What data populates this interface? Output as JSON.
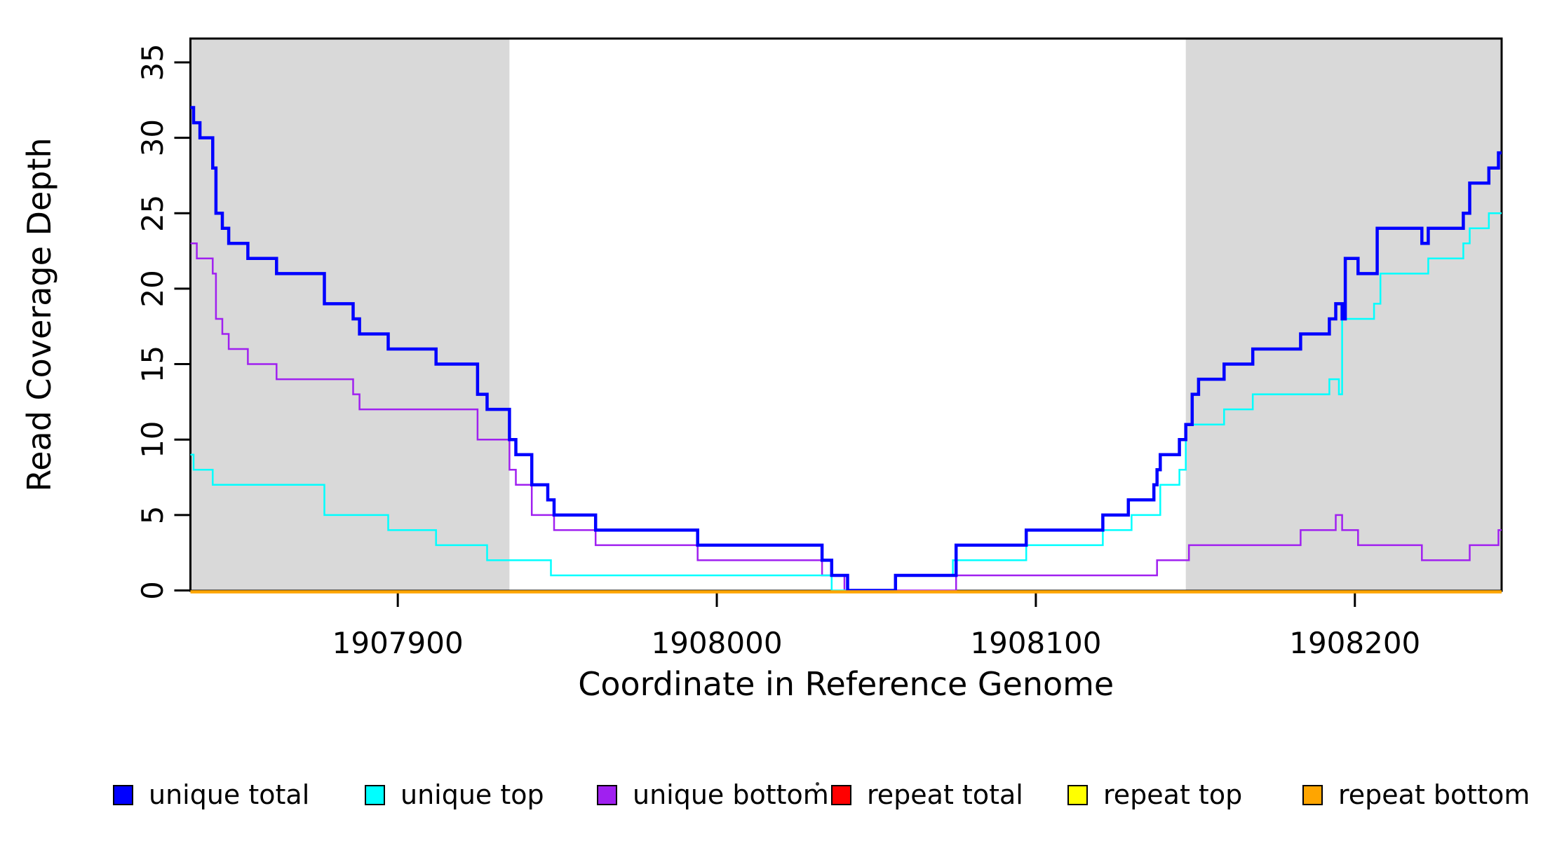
{
  "figure": {
    "background": "#ffffff",
    "plot_border_color": "#000000"
  },
  "chart_data": {
    "type": "line",
    "subtype": "step-post",
    "title": "",
    "xlabel": "Coordinate in Reference Genome",
    "ylabel": "Read Coverage Depth",
    "x_ticks": [
      1907900,
      1908000,
      1908100,
      1908200
    ],
    "y_ticks": [
      0,
      5,
      10,
      15,
      20,
      25,
      30,
      35
    ],
    "xlim": [
      1907835,
      1908246
    ],
    "ylim": [
      0,
      36.6
    ],
    "grid": false,
    "legend_position": "bottom",
    "shaded_regions": [
      {
        "name": "left-shaded-region",
        "x_start": 1907835,
        "x_end": 1907935,
        "color": "#d9d9d9"
      },
      {
        "name": "right-shaded-region",
        "x_start": 1908147,
        "x_end": 1908246,
        "color": "#d9d9d9"
      }
    ],
    "series": [
      {
        "name": "unique total",
        "color": "#0000ff",
        "line_width": 4.5,
        "steps": [
          [
            1907835,
            32
          ],
          [
            1907836,
            31
          ],
          [
            1907838,
            30
          ],
          [
            1907842,
            28
          ],
          [
            1907843,
            25
          ],
          [
            1907845,
            24
          ],
          [
            1907847,
            23
          ],
          [
            1907853,
            22
          ],
          [
            1907862,
            21
          ],
          [
            1907877,
            19
          ],
          [
            1907886,
            18
          ],
          [
            1907888,
            17
          ],
          [
            1907897,
            16
          ],
          [
            1907912,
            15
          ],
          [
            1907925,
            13
          ],
          [
            1907928,
            12
          ],
          [
            1907935,
            10
          ],
          [
            1907937,
            9
          ],
          [
            1907942,
            7
          ],
          [
            1907947,
            6
          ],
          [
            1907949,
            5
          ],
          [
            1907962,
            4
          ],
          [
            1907994,
            3
          ],
          [
            1908033,
            2
          ],
          [
            1908036,
            1
          ],
          [
            1908041,
            0
          ],
          [
            1908056,
            1
          ],
          [
            1908075,
            3
          ],
          [
            1908097,
            4
          ],
          [
            1908121,
            5
          ],
          [
            1908129,
            6
          ],
          [
            1908137,
            7
          ],
          [
            1908138,
            8
          ],
          [
            1908139,
            9
          ],
          [
            1908145,
            10
          ],
          [
            1908147,
            11
          ],
          [
            1908149,
            13
          ],
          [
            1908151,
            14
          ],
          [
            1908159,
            15
          ],
          [
            1908168,
            16
          ],
          [
            1908183,
            17
          ],
          [
            1908192,
            18
          ],
          [
            1908194,
            19
          ],
          [
            1908196,
            18
          ],
          [
            1908197,
            22
          ],
          [
            1908201,
            21
          ],
          [
            1908207,
            24
          ],
          [
            1908221,
            23
          ],
          [
            1908223,
            24
          ],
          [
            1908234,
            25
          ],
          [
            1908236,
            27
          ],
          [
            1908242,
            28
          ],
          [
            1908245,
            29
          ]
        ]
      },
      {
        "name": "unique top",
        "color": "#00ffff",
        "line_width": 2.5,
        "steps": [
          [
            1907835,
            9
          ],
          [
            1907836,
            8
          ],
          [
            1907842,
            7
          ],
          [
            1907877,
            5
          ],
          [
            1907897,
            4
          ],
          [
            1907912,
            3
          ],
          [
            1907928,
            2
          ],
          [
            1907948,
            1
          ],
          [
            1908036,
            0
          ],
          [
            1908056,
            1
          ],
          [
            1908074,
            2
          ],
          [
            1908097,
            3
          ],
          [
            1908121,
            4
          ],
          [
            1908130,
            5
          ],
          [
            1908139,
            7
          ],
          [
            1908145,
            8
          ],
          [
            1908147,
            11
          ],
          [
            1908159,
            12
          ],
          [
            1908168,
            13
          ],
          [
            1908192,
            14
          ],
          [
            1908195,
            13
          ],
          [
            1908196,
            18
          ],
          [
            1908206,
            19
          ],
          [
            1908208,
            21
          ],
          [
            1908223,
            22
          ],
          [
            1908234,
            23
          ],
          [
            1908236,
            24
          ],
          [
            1908242,
            25
          ]
        ]
      },
      {
        "name": "unique bottom",
        "color": "#a020f0",
        "line_width": 2.5,
        "steps": [
          [
            1907835,
            23
          ],
          [
            1907837,
            22
          ],
          [
            1907842,
            21
          ],
          [
            1907843,
            18
          ],
          [
            1907845,
            17
          ],
          [
            1907847,
            16
          ],
          [
            1907853,
            15
          ],
          [
            1907862,
            14
          ],
          [
            1907886,
            13
          ],
          [
            1907888,
            12
          ],
          [
            1907925,
            10
          ],
          [
            1907935,
            8
          ],
          [
            1907937,
            7
          ],
          [
            1907942,
            5
          ],
          [
            1907949,
            4
          ],
          [
            1907962,
            3
          ],
          [
            1907994,
            2
          ],
          [
            1908033,
            1
          ],
          [
            1908040,
            0
          ],
          [
            1908075,
            1
          ],
          [
            1908138,
            2
          ],
          [
            1908148,
            3
          ],
          [
            1908183,
            4
          ],
          [
            1908194,
            5
          ],
          [
            1908196,
            4
          ],
          [
            1908201,
            3
          ],
          [
            1908221,
            2
          ],
          [
            1908236,
            3
          ],
          [
            1908245,
            4
          ]
        ]
      },
      {
        "name": "repeat total",
        "color": "#ff0000",
        "line_width": 2.5,
        "steps": [
          [
            1907835,
            0
          ]
        ]
      },
      {
        "name": "repeat top",
        "color": "#ffff00",
        "line_width": 2.5,
        "steps": [
          [
            1907835,
            0
          ]
        ]
      },
      {
        "name": "repeat bottom",
        "color": "#ffa500",
        "line_width": 4.5,
        "steps": [
          [
            1907835,
            0
          ]
        ]
      }
    ]
  },
  "legend": {
    "items": [
      {
        "label": "unique total",
        "color": "#0000ff"
      },
      {
        "label": "unique top",
        "color": "#00ffff"
      },
      {
        "label": "unique bottom",
        "color": "#a020f0"
      },
      {
        "label": "repeat total",
        "color": "#ff0000"
      },
      {
        "label": "repeat top",
        "color": "#ffff00"
      },
      {
        "label": "repeat bottom",
        "color": "#ffa500"
      }
    ]
  }
}
